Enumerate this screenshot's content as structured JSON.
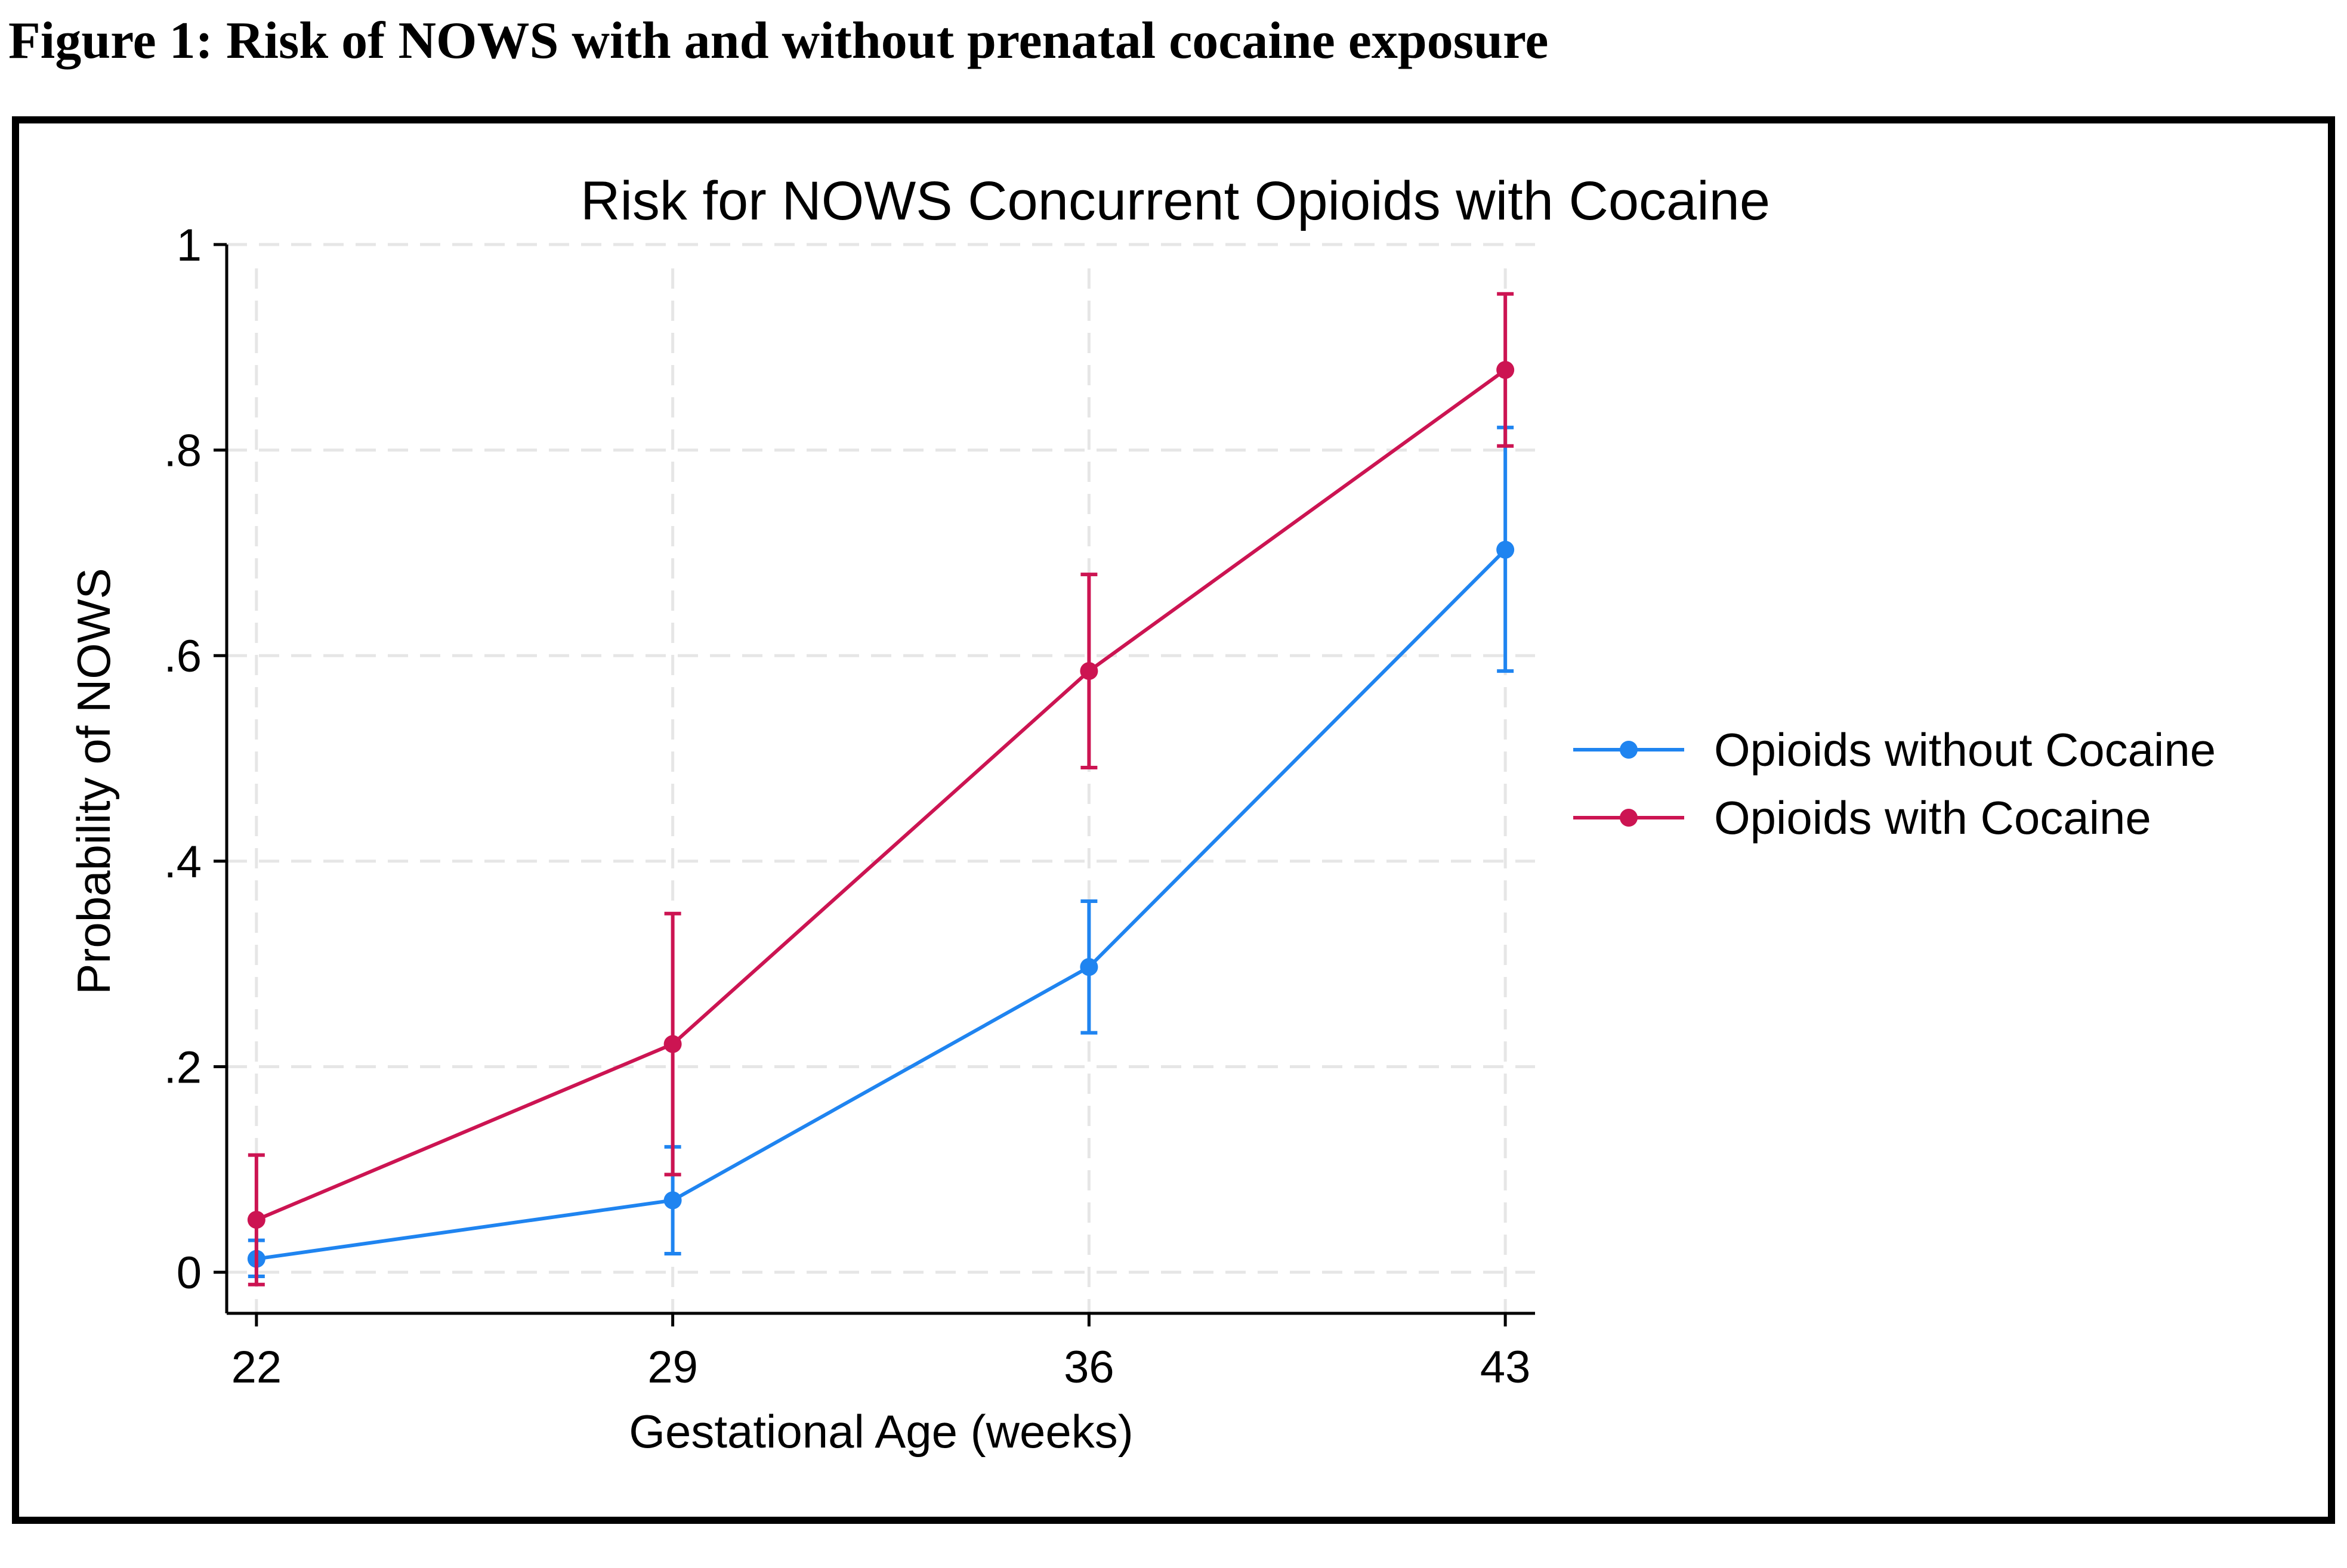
{
  "caption": "Figure 1: Risk of NOWS with and without prenatal cocaine exposure",
  "chart_data": {
    "type": "line",
    "title": "Risk for NOWS Concurrent Opioids with Cocaine",
    "xlabel": "Gestational Age (weeks)",
    "ylabel": "Probability of NOWS",
    "x": [
      22,
      29,
      36,
      43
    ],
    "x_tick_labels": [
      "22",
      "29",
      "36",
      "43"
    ],
    "xlim": [
      21.5,
      43.5
    ],
    "ylim": [
      -0.04,
      1.0
    ],
    "y_ticks": [
      0,
      0.2,
      0.4,
      0.6,
      0.8,
      1.0
    ],
    "y_tick_labels": [
      "0",
      ".2",
      ".4",
      ".6",
      ".8",
      "1"
    ],
    "grid": true,
    "legend_position": "right",
    "series": [
      {
        "name": "Opioids without Cocaine",
        "color": "#1f84f0",
        "values": [
          0.013,
          0.07,
          0.297,
          0.703
        ],
        "ci_lower": [
          -0.004,
          0.018,
          0.233,
          0.585
        ],
        "ci_upper": [
          0.031,
          0.122,
          0.361,
          0.822
        ]
      },
      {
        "name": "Opioids with Cocaine",
        "color": "#cc1452",
        "values": [
          0.051,
          0.222,
          0.585,
          0.878
        ],
        "ci_lower": [
          -0.012,
          0.095,
          0.491,
          0.804
        ],
        "ci_upper": [
          0.114,
          0.349,
          0.679,
          0.952
        ]
      }
    ]
  }
}
